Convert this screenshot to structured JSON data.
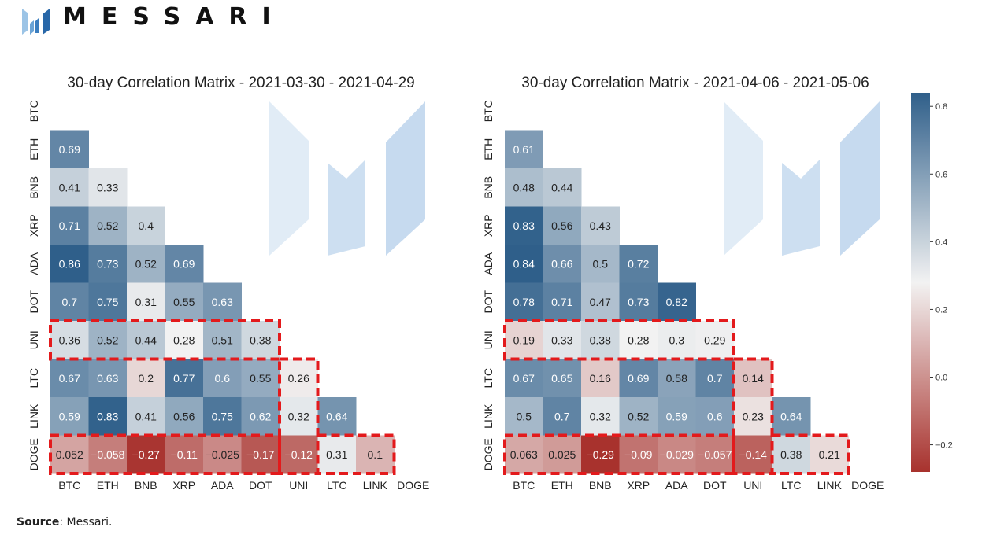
{
  "brand": {
    "name": "MESSARI",
    "logo_icon": "messari-logo-icon"
  },
  "source": {
    "label": "Source",
    "text": ": Messari."
  },
  "colorbar": {
    "ticks": [
      0.8,
      0.6,
      0.4,
      0.2,
      0.0,
      -0.2
    ],
    "tick_labels": [
      "0.8",
      "0.6",
      "0.4",
      "0.2",
      "0.0",
      "−0.2"
    ],
    "min": -0.28,
    "max": 0.84
  },
  "colors": {
    "high": "#2f5f8a",
    "mid": "#f2f2f2",
    "low": "#a8322d",
    "highlight": "#e31a1c",
    "watermark": "#bcd4ec"
  },
  "chart_data": [
    {
      "type": "heatmap",
      "title": "30-day Correlation Matrix - 2021-03-30 - 2021-04-29",
      "labels": [
        "BTC",
        "ETH",
        "BNB",
        "XRP",
        "ADA",
        "DOT",
        "UNI",
        "LTC",
        "LINK",
        "DOGE"
      ],
      "display": [
        [],
        [
          "0.69"
        ],
        [
          "0.41",
          "0.33"
        ],
        [
          "0.71",
          "0.52",
          "0.4"
        ],
        [
          "0.86",
          "0.73",
          "0.52",
          "0.69"
        ],
        [
          "0.7",
          "0.75",
          "0.31",
          "0.55",
          "0.63"
        ],
        [
          "0.36",
          "0.52",
          "0.44",
          "0.28",
          "0.51",
          "0.38"
        ],
        [
          "0.67",
          "0.63",
          "0.2",
          "0.77",
          "0.6",
          "0.55",
          "0.26"
        ],
        [
          "0.59",
          "0.83",
          "0.41",
          "0.56",
          "0.75",
          "0.62",
          "0.32",
          "0.64"
        ],
        [
          "0.052",
          "-0.058",
          "-0.27",
          "-0.11",
          "-0.025",
          "-0.17",
          "-0.12",
          "0.31",
          "0.1"
        ]
      ]
    },
    {
      "type": "heatmap",
      "title": "30-day Correlation Matrix - 2021-04-06 - 2021-05-06",
      "labels": [
        "BTC",
        "ETH",
        "BNB",
        "XRP",
        "ADA",
        "DOT",
        "UNI",
        "LTC",
        "LINK",
        "DOGE"
      ],
      "display": [
        [],
        [
          "0.61"
        ],
        [
          "0.48",
          "0.44"
        ],
        [
          "0.83",
          "0.56",
          "0.43"
        ],
        [
          "0.84",
          "0.66",
          "0.5",
          "0.72"
        ],
        [
          "0.78",
          "0.71",
          "0.47",
          "0.73",
          "0.82"
        ],
        [
          "0.19",
          "0.33",
          "0.38",
          "0.28",
          "0.3",
          "0.29"
        ],
        [
          "0.67",
          "0.65",
          "0.16",
          "0.69",
          "0.58",
          "0.7",
          "0.14"
        ],
        [
          "0.5",
          "0.7",
          "0.32",
          "0.52",
          "0.59",
          "0.6",
          "0.23",
          "0.64"
        ],
        [
          "0.063",
          "0.025",
          "-0.29",
          "-0.09",
          "-0.029",
          "-0.057",
          "-0.14",
          "0.38",
          "0.21"
        ]
      ]
    }
  ]
}
